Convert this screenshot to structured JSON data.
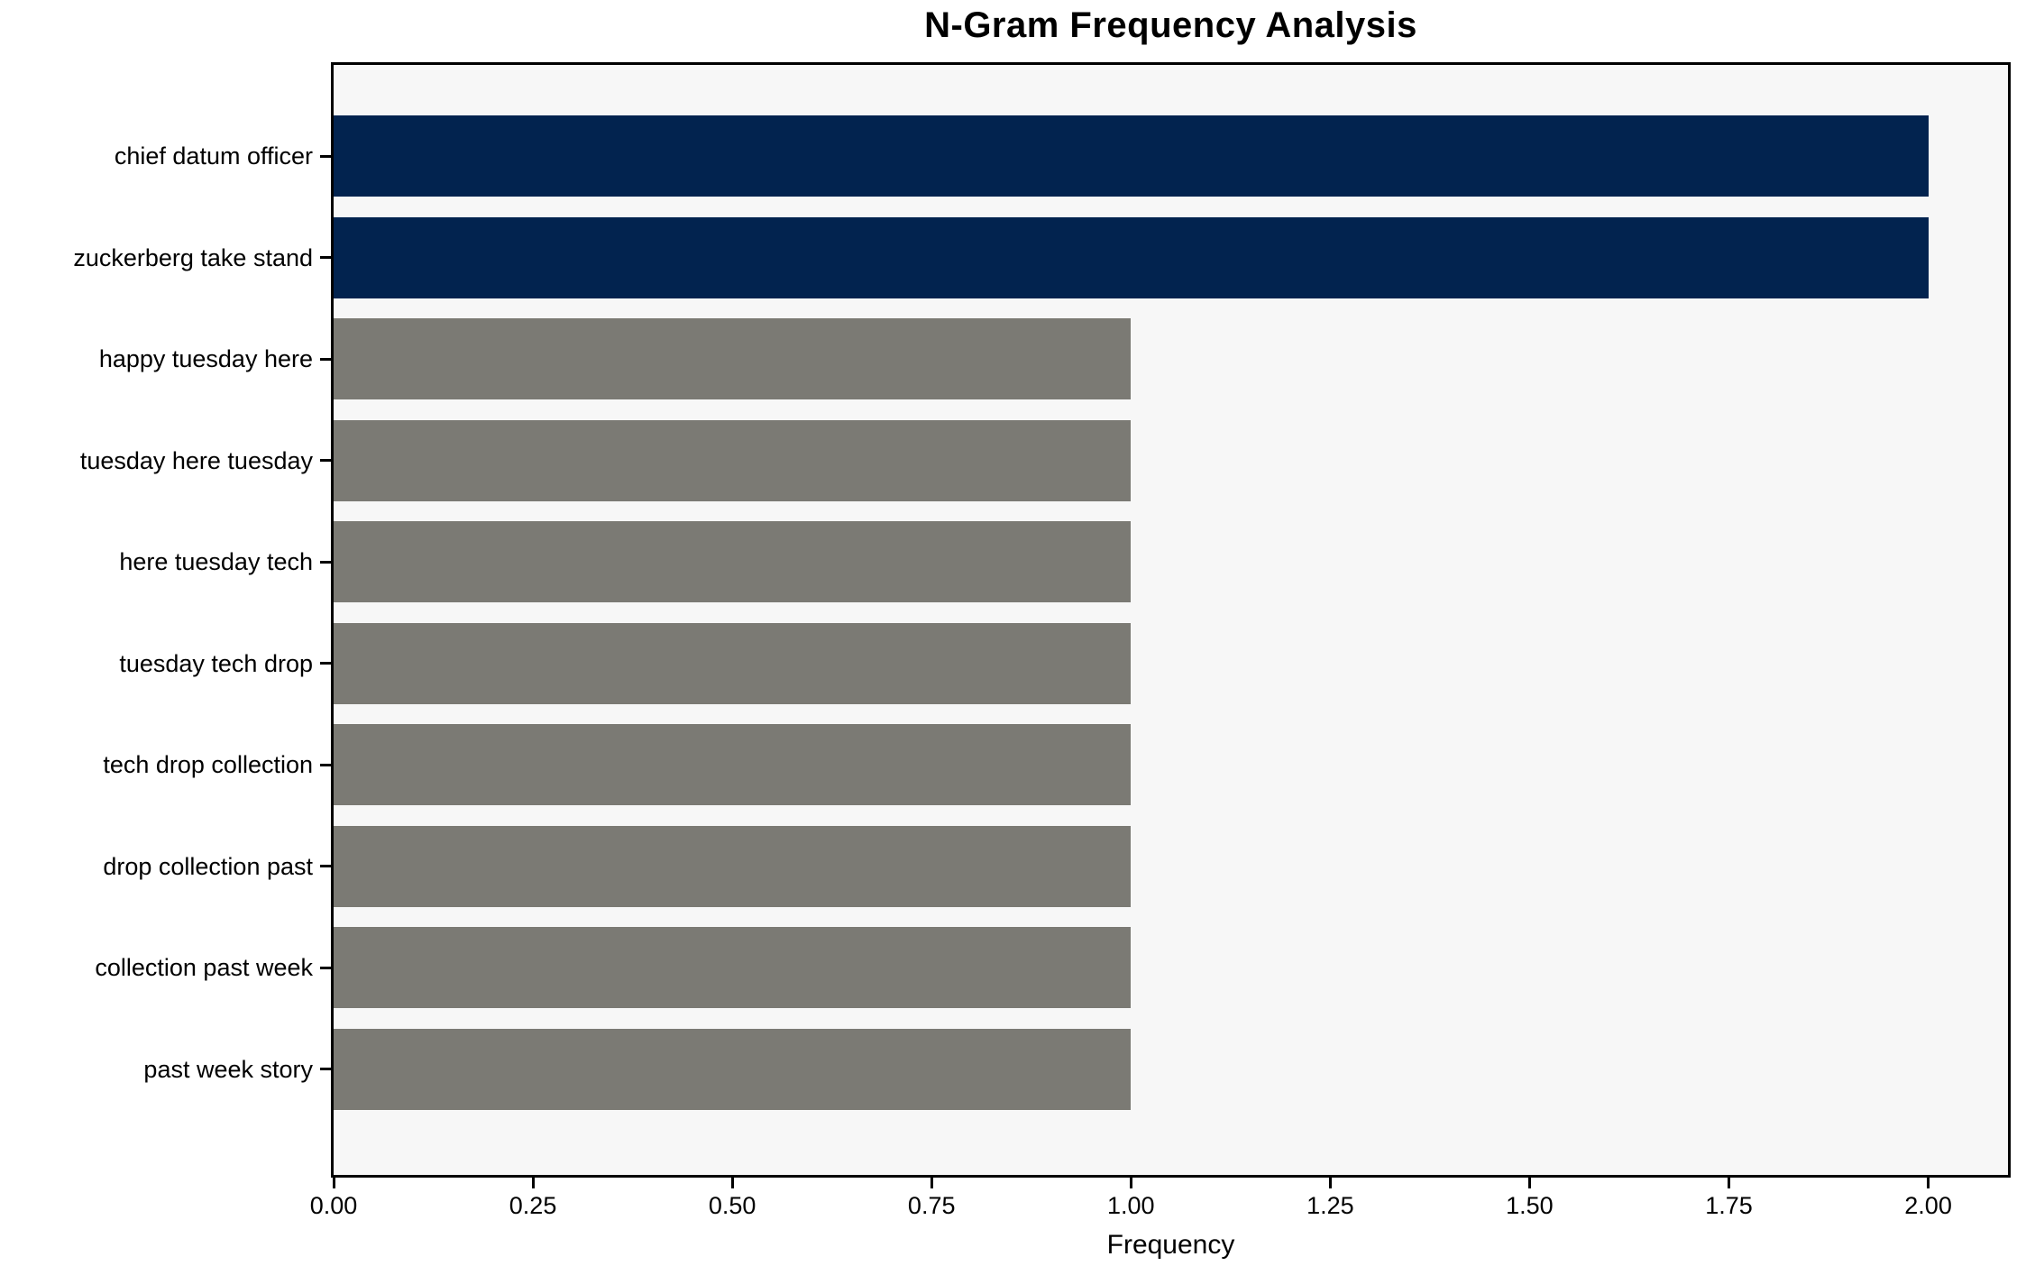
{
  "title": "N-Gram Frequency Analysis",
  "chart_data": {
    "type": "bar",
    "orientation": "horizontal",
    "title": "N-Gram Frequency Analysis",
    "xlabel": "Frequency",
    "ylabel": "",
    "categories": [
      "chief datum officer",
      "zuckerberg take stand",
      "happy tuesday here",
      "tuesday here tuesday",
      "here tuesday tech",
      "tuesday tech drop",
      "tech drop collection",
      "drop collection past",
      "collection past week",
      "past week story"
    ],
    "values": [
      2,
      2,
      1,
      1,
      1,
      1,
      1,
      1,
      1,
      1
    ],
    "bar_colors": [
      "#02234f",
      "#02234f",
      "#7b7a74",
      "#7b7a74",
      "#7b7a74",
      "#7b7a74",
      "#7b7a74",
      "#7b7a74",
      "#7b7a74",
      "#7b7a74"
    ],
    "xlim": [
      0,
      2.1
    ],
    "xticks": {
      "values": [
        0,
        0.25,
        0.5,
        0.75,
        1.0,
        1.25,
        1.5,
        1.75,
        2.0
      ],
      "labels": [
        "0.00",
        "0.25",
        "0.50",
        "0.75",
        "1.00",
        "1.25",
        "1.50",
        "1.75",
        "2.00"
      ]
    },
    "grid": false,
    "colors": {
      "highlight_bar": "#02234f",
      "default_bar": "#7b7a74",
      "plot_background": "#f7f7f7",
      "figure_background": "#ffffff",
      "axis_and_text": "#000000"
    }
  }
}
